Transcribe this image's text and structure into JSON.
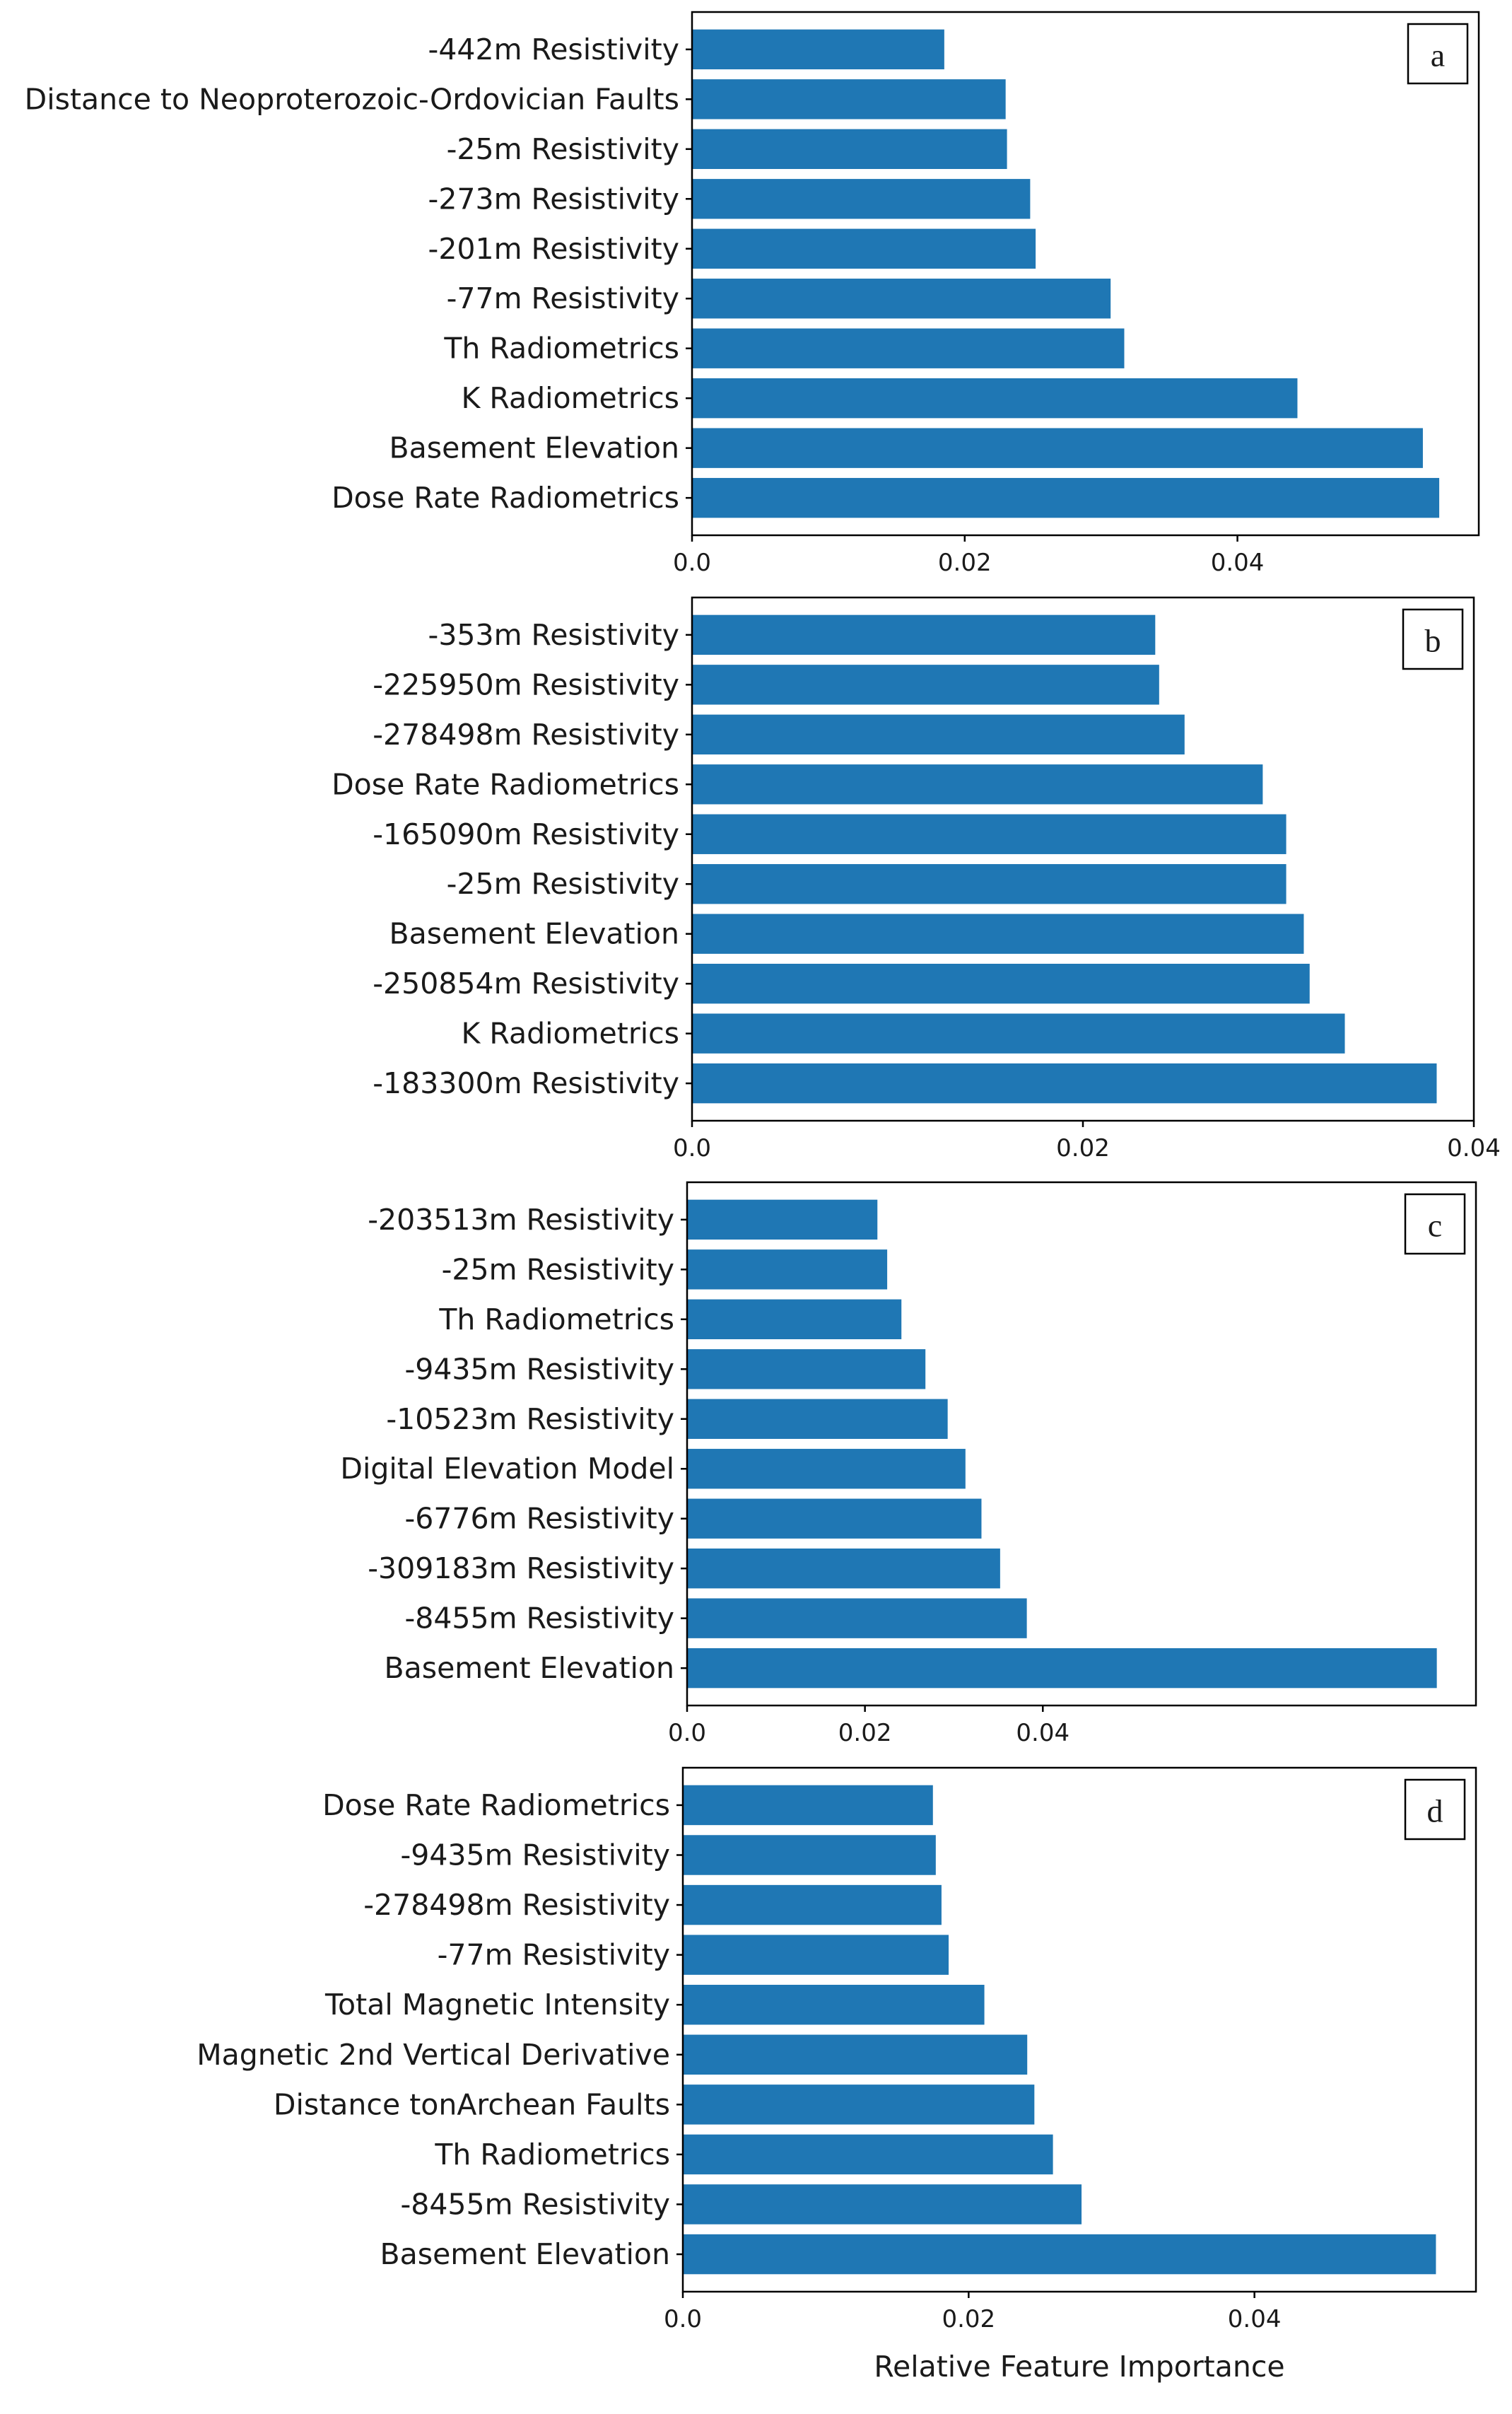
{
  "chart_data": [
    {
      "panel": "a",
      "type": "bar",
      "orientation": "horizontal",
      "categories": [
        "-442m Resistivity",
        "Distance to Neoproterozoic-Ordovician Faults",
        "-25m Resistivity",
        "-273m Resistivity",
        "-201m Resistivity",
        "-77m Resistivity",
        "Th Radiometrics",
        "K Radiometrics",
        "Basement Elevation",
        "Dose Rate Radiometrics"
      ],
      "values": [
        0.0185,
        0.023,
        0.0231,
        0.0248,
        0.0252,
        0.0307,
        0.0317,
        0.0444,
        0.0536,
        0.0548
      ],
      "xticks": [
        0.0,
        0.02,
        0.04
      ],
      "xtick_labels": [
        "0.0",
        "0.02",
        "0.04"
      ],
      "xlim": [
        0.0,
        0.0577
      ],
      "xlabel": "",
      "bar_color": "#1f77b4"
    },
    {
      "panel": "b",
      "type": "bar",
      "orientation": "horizontal",
      "categories": [
        "-353m Resistivity",
        "-225950m Resistivity",
        "-278498m Resistivity",
        "Dose Rate Radiometrics",
        "-165090m Resistivity",
        "-25m Resistivity",
        "Basement Elevation",
        "-250854m Resistivity",
        "K Radiometrics",
        "-183300m Resistivity"
      ],
      "values": [
        0.0237,
        0.0239,
        0.0252,
        0.0292,
        0.0304,
        0.0304,
        0.0313,
        0.0316,
        0.0334,
        0.0381
      ],
      "xticks": [
        0.0,
        0.02,
        0.04
      ],
      "xtick_labels": [
        "0.0",
        "0.02",
        "0.04"
      ],
      "xlim": [
        0.0,
        0.04
      ],
      "xlabel": "",
      "bar_color": "#1f77b4"
    },
    {
      "panel": "c",
      "type": "bar",
      "orientation": "horizontal",
      "categories": [
        "-203513m Resistivity",
        "-25m Resistivity",
        "Th Radiometrics",
        "-9435m Resistivity",
        "-10523m Resistivity",
        "Digital Elevation Model",
        "-6776m Resistivity",
        "-309183m Resistivity",
        "-8455m Resistivity",
        "Basement Elevation"
      ],
      "values": [
        0.0214,
        0.0225,
        0.0241,
        0.0268,
        0.0293,
        0.0313,
        0.0331,
        0.0352,
        0.0382,
        0.0843
      ],
      "xticks": [
        0.0,
        0.02,
        0.04
      ],
      "xtick_labels": [
        "0.0",
        "0.02",
        "0.04"
      ],
      "xlim": [
        0.0,
        0.0887
      ],
      "xlabel": "",
      "bar_color": "#1f77b4"
    },
    {
      "panel": "d",
      "type": "bar",
      "orientation": "horizontal",
      "categories": [
        "Dose Rate Radiometrics",
        "-9435m Resistivity",
        "-278498m Resistivity",
        "-77m Resistivity",
        "Total Magnetic Intensity",
        "Magnetic 2nd Vertical Derivative",
        "Distance tonArchean Faults",
        "Th Radiometrics",
        "-8455m Resistivity",
        "Basement Elevation"
      ],
      "values": [
        0.0175,
        0.0177,
        0.0181,
        0.0186,
        0.0211,
        0.0241,
        0.0246,
        0.0259,
        0.0279,
        0.0527
      ],
      "xticks": [
        0.0,
        0.02,
        0.04
      ],
      "xtick_labels": [
        "0.0",
        "0.02",
        "0.04"
      ],
      "xlim": [
        0.0,
        0.0555
      ],
      "xlabel": "Relative Feature Importance",
      "bar_color": "#1f77b4"
    }
  ]
}
